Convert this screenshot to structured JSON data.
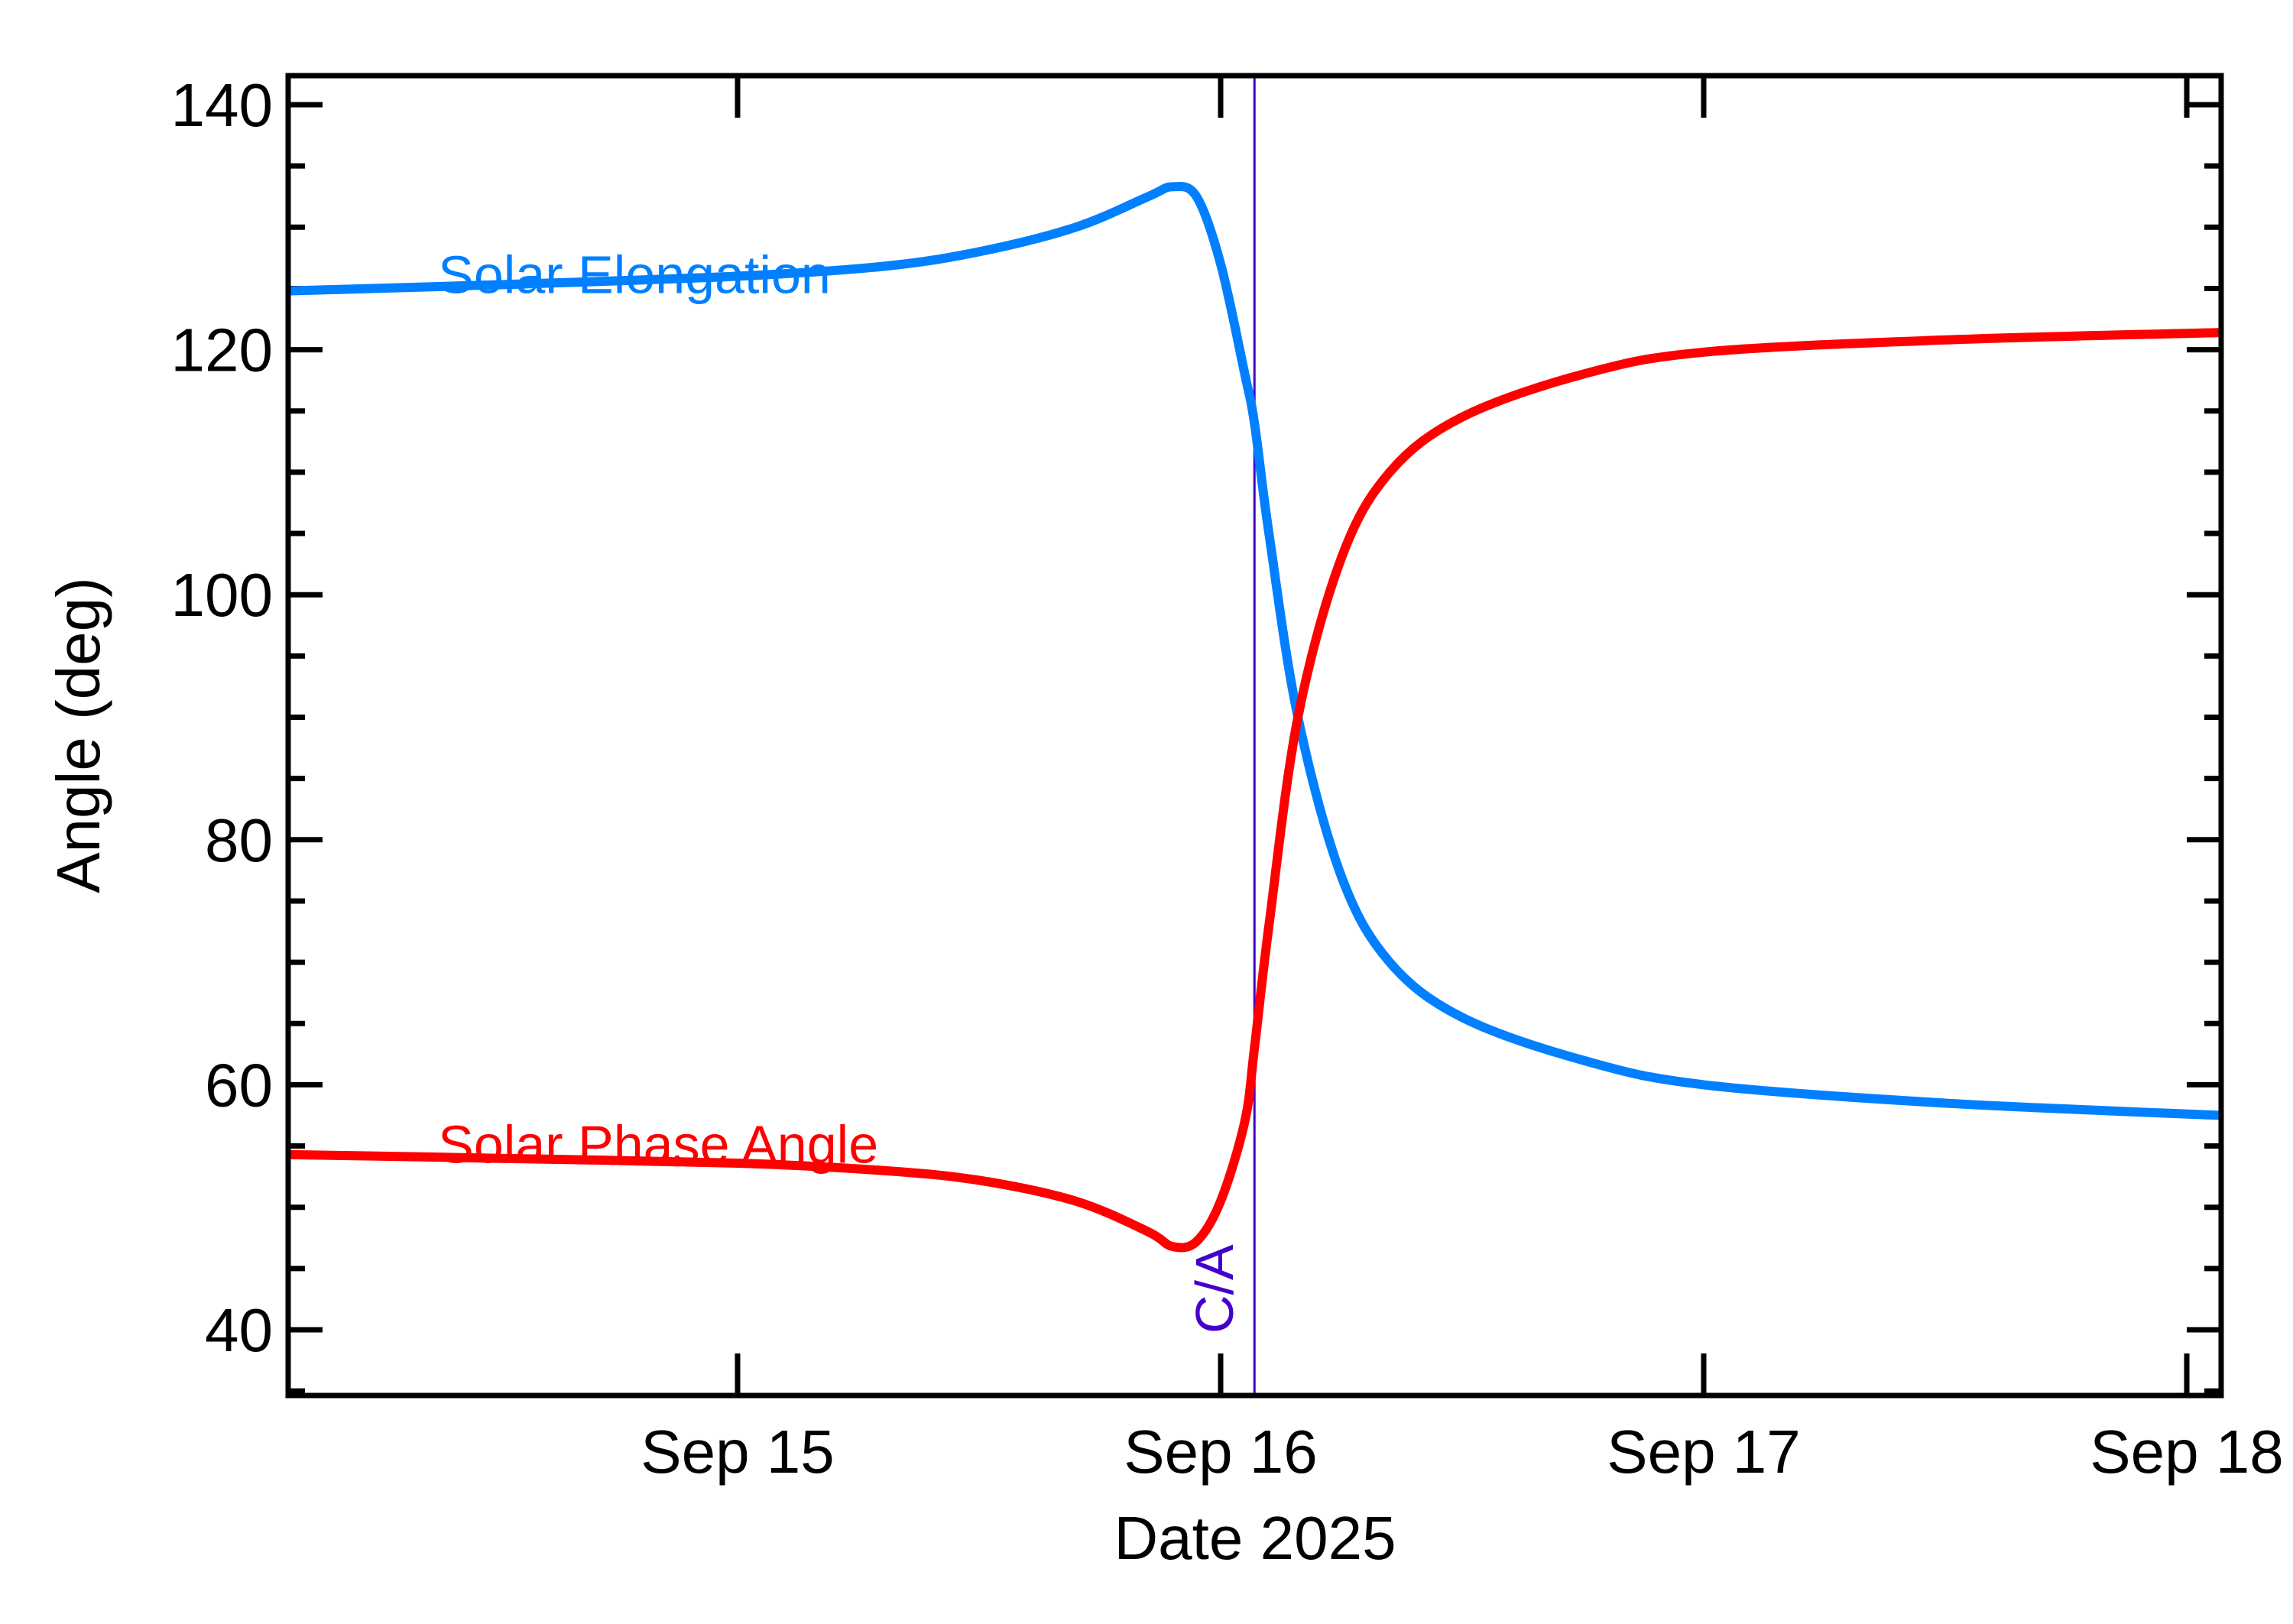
{
  "chart_data": {
    "type": "line",
    "title": "",
    "xlabel": "Date 2025",
    "ylabel": "Angle (deg)",
    "x_unit": "days since Sep 14 2025 00:00 UTC",
    "xlim": [
      0.07,
      4.07
    ],
    "ylim": [
      34.6,
      142.4
    ],
    "x_ticks": [
      {
        "value": 1,
        "label": "Sep 15"
      },
      {
        "value": 2,
        "label": "Sep 16"
      },
      {
        "value": 3,
        "label": "Sep 17"
      },
      {
        "value": 4,
        "label": "Sep 18"
      }
    ],
    "y_ticks": [
      {
        "value": 40,
        "label": "40"
      },
      {
        "value": 60,
        "label": "60"
      },
      {
        "value": 80,
        "label": "80"
      },
      {
        "value": 100,
        "label": "100"
      },
      {
        "value": 120,
        "label": "120"
      },
      {
        "value": 140,
        "label": "140"
      }
    ],
    "y_minor_step": 5,
    "grid": false,
    "legend_position": "inline labels",
    "x": [
      0.07,
      0.5,
      1.0,
      1.3,
      1.5,
      1.7,
      1.85,
      1.9,
      1.95,
      2.0,
      2.05,
      2.07,
      2.1,
      2.16,
      2.25,
      2.35,
      2.5,
      2.75,
      3.0,
      3.5,
      4.07
    ],
    "series": [
      {
        "name": "Solar Elongation",
        "color": "#0080FF",
        "label_pos": {
          "x": 0.38,
          "y": 126.5
        },
        "values": [
          124.8,
          125.3,
          126.0,
          126.8,
          128.0,
          130.0,
          132.5,
          133.3,
          132.5,
          127.0,
          118.0,
          114.0,
          105.0,
          90.0,
          77.0,
          70.0,
          65.5,
          62.0,
          60.0,
          58.5,
          57.5
        ]
      },
      {
        "name": "Solar Phase Angle",
        "color": "#FF0000",
        "label_pos": {
          "x": 0.38,
          "y": 55.5
        },
        "values": [
          54.3,
          54.0,
          53.6,
          53.0,
          52.2,
          50.5,
          48.0,
          46.8,
          47.2,
          50.5,
          57.0,
          63.0,
          73.0,
          90.0,
          103.0,
          110.0,
          114.5,
          118.0,
          119.8,
          120.8,
          121.4
        ]
      }
    ],
    "annotations": [
      {
        "type": "vline",
        "x": 2.07,
        "label": "C/A",
        "color": "#4400CC"
      }
    ]
  }
}
